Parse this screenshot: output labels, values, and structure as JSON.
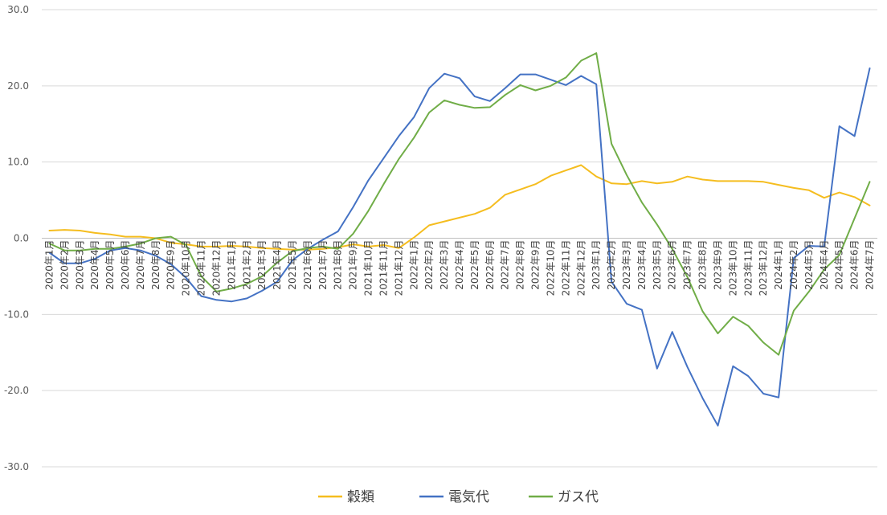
{
  "chart_data": {
    "type": "line",
    "title": "",
    "xlabel": "",
    "ylabel": "",
    "ylim": [
      -30,
      30
    ],
    "y_ticks": [
      30,
      20,
      10,
      0,
      -10,
      -20,
      -30
    ],
    "y_tick_labels": [
      "30.0",
      "20.0",
      "10.0",
      "0.0",
      "-10.0",
      "-20.0",
      "-30.0"
    ],
    "grid": true,
    "legend_position": "bottom",
    "categories": [
      "2020年1月",
      "2020年2月",
      "2020年3月",
      "2020年4月",
      "2020年5月",
      "2020年6月",
      "2020年7月",
      "2020年8月",
      "2020年9月",
      "2020年10月",
      "2020年11月",
      "2020年12月",
      "2021年1月",
      "2021年2月",
      "2021年3月",
      "2021年4月",
      "2021年5月",
      "2021年6月",
      "2021年7月",
      "2021年8月",
      "2021年9月",
      "2021年10月",
      "2021年11月",
      "2021年12月",
      "2022年1月",
      "2022年2月",
      "2022年3月",
      "2022年4月",
      "2022年5月",
      "2022年6月",
      "2022年7月",
      "2022年8月",
      "2022年9月",
      "2022年10月",
      "2022年11月",
      "2022年12月",
      "2023年1月",
      "2023年2月",
      "2023年3月",
      "2023年4月",
      "2023年5月",
      "2023年6月",
      "2023年7月",
      "2023年8月",
      "2023年9月",
      "2023年10月",
      "2023年11月",
      "2023年12月",
      "2024年1月",
      "2024年2月",
      "2024年3月",
      "2024年4月",
      "2024年5月",
      "2024年6月",
      "2024年7月"
    ],
    "series": [
      {
        "name": "穀類",
        "color": "#F5BD1F",
        "values": [
          1.0,
          1.1,
          1.0,
          0.7,
          0.5,
          0.2,
          0.2,
          0.0,
          -0.6,
          -0.8,
          -1.1,
          -1.1,
          -1.0,
          -1.1,
          -1.3,
          -1.4,
          -1.5,
          -1.5,
          -1.4,
          -1.2,
          -0.8,
          -1.1,
          -0.9,
          -1.3,
          0.1,
          1.7,
          2.2,
          2.7,
          3.2,
          4.0,
          5.7,
          6.4,
          7.1,
          8.2,
          8.9,
          9.6,
          8.1,
          7.2,
          7.1,
          7.5,
          7.2,
          7.4,
          8.1,
          7.7,
          7.5,
          7.5,
          7.5,
          7.4,
          7.0,
          6.6,
          6.3,
          5.3,
          6.0,
          5.4,
          4.3
        ]
      },
      {
        "name": "電気代",
        "color": "#4472C4",
        "values": [
          -1.9,
          -3.3,
          -3.3,
          -2.7,
          -1.6,
          -1.3,
          -1.6,
          -2.3,
          -3.4,
          -5.2,
          -7.6,
          -8.1,
          -8.3,
          -7.9,
          -6.9,
          -5.7,
          -2.9,
          -1.4,
          -0.2,
          0.9,
          4.1,
          7.6,
          10.5,
          13.4,
          15.9,
          19.7,
          21.6,
          21.0,
          18.6,
          18.0,
          19.7,
          21.5,
          21.5,
          20.8,
          20.1,
          21.3,
          20.2,
          -5.7,
          -8.6,
          -9.4,
          -17.1,
          -12.3,
          -16.9,
          -21.0,
          -24.6,
          -16.8,
          -18.1,
          -20.4,
          -20.9,
          -2.6,
          -1.0,
          -1.1,
          14.7,
          13.4,
          22.3
        ]
      },
      {
        "name": "ガス代",
        "color": "#70AD47",
        "values": [
          -0.7,
          -1.6,
          -1.6,
          -1.4,
          -1.4,
          -1.1,
          -0.7,
          0.0,
          0.2,
          -0.9,
          -5.0,
          -7.0,
          -6.6,
          -6.0,
          -5.0,
          -3.2,
          -1.7,
          -1.3,
          -1.1,
          -1.4,
          0.6,
          3.6,
          7.1,
          10.4,
          13.2,
          16.5,
          18.1,
          17.5,
          17.1,
          17.2,
          18.8,
          20.1,
          19.4,
          20.0,
          21.1,
          23.3,
          24.3,
          12.4,
          8.3,
          4.7,
          1.8,
          -1.4,
          -5.1,
          -9.6,
          -12.5,
          -10.3,
          -11.5,
          -13.7,
          -15.3,
          -9.5,
          -7.0,
          -4.1,
          -2.2,
          2.6,
          7.4
        ]
      }
    ]
  }
}
